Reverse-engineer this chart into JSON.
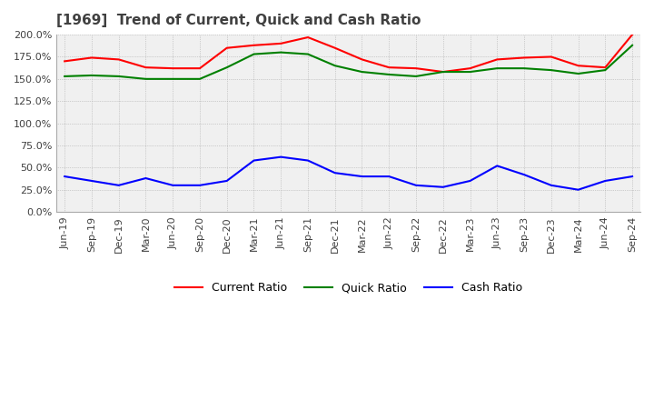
{
  "title": "[1969]  Trend of Current, Quick and Cash Ratio",
  "x_labels": [
    "Jun-19",
    "Sep-19",
    "Dec-19",
    "Mar-20",
    "Jun-20",
    "Sep-20",
    "Dec-20",
    "Mar-21",
    "Jun-21",
    "Sep-21",
    "Dec-21",
    "Mar-22",
    "Jun-22",
    "Sep-22",
    "Dec-22",
    "Mar-23",
    "Jun-23",
    "Sep-23",
    "Dec-23",
    "Mar-24",
    "Jun-24",
    "Sep-24"
  ],
  "current_ratio": [
    170,
    174,
    172,
    163,
    162,
    162,
    185,
    188,
    190,
    197,
    185,
    172,
    163,
    162,
    158,
    162,
    172,
    174,
    175,
    165,
    163,
    200
  ],
  "quick_ratio": [
    153,
    154,
    153,
    150,
    150,
    150,
    163,
    178,
    180,
    178,
    165,
    158,
    155,
    153,
    158,
    158,
    162,
    162,
    160,
    156,
    160,
    188
  ],
  "cash_ratio": [
    40,
    35,
    30,
    38,
    30,
    30,
    35,
    58,
    62,
    58,
    44,
    40,
    40,
    30,
    28,
    35,
    52,
    42,
    30,
    25,
    35,
    40
  ],
  "current_color": "#ff0000",
  "quick_color": "#008000",
  "cash_color": "#0000ff",
  "ylim": [
    0,
    200
  ],
  "yticks": [
    0,
    25,
    50,
    75,
    100,
    125,
    150,
    175,
    200
  ],
  "grid_color": "#aaaaaa",
  "bg_color": "#ffffff",
  "plot_bg_color": "#f0f0f0",
  "title_color": "#404040",
  "title_fontsize": 11,
  "legend_fontsize": 9,
  "tick_fontsize": 8
}
